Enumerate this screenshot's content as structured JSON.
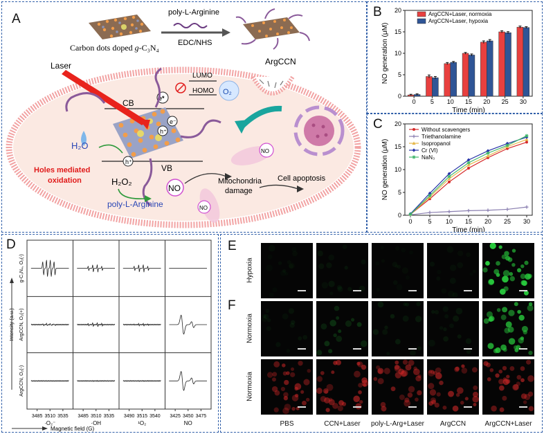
{
  "panel_labels": {
    "a": "A",
    "b": "B",
    "c": "C",
    "d": "D",
    "e": "E",
    "f": "F"
  },
  "panelA": {
    "carbon_dots_label_prefix": "Carbon dots doped ",
    "carbon_dots_label_g": "g",
    "carbon_dots_label_suffix": "-C₃N₄",
    "reagent_top": "poly-L-Arginine",
    "reagent_bottom": "EDC/NHS",
    "product_label": "ArgCCN",
    "laser_label": "Laser",
    "lumo": "LUMO",
    "homo": "HOMO",
    "o2": "O₂",
    "cb": "CB",
    "vb": "VB",
    "e_star": "e*",
    "e_minus": "e⁻",
    "h_plus": "h⁺",
    "h2o": "H₂O",
    "h2o2": "H₂O₂",
    "holes_line1": "Holes mediated",
    "holes_line2": "oxidation",
    "no_label": "NO",
    "poly_arg": "poly-L-Arginine",
    "mito_line1": "Mitochondria",
    "mito_line2": "damage",
    "apoptosis": "Cell apoptosis",
    "colors": {
      "membrane": "#f2a3a3",
      "cytoplasm": "#fbe9e2",
      "laser": "#e8231c",
      "holes": "#e01b1b",
      "poly": "#2a46b5",
      "arrow": "#1aa59e"
    }
  },
  "chart_data": [
    {
      "id": "B",
      "type": "bar",
      "categories": [
        "0",
        "5",
        "10",
        "15",
        "20",
        "25",
        "30"
      ],
      "series": [
        {
          "name": "ArgCCN+Laser, normoxia",
          "color": "#e8403f",
          "values": [
            0.3,
            4.6,
            7.6,
            10.0,
            12.6,
            15.0,
            16.1
          ],
          "errors": [
            0.15,
            0.35,
            0.25,
            0.2,
            0.3,
            0.25,
            0.25
          ]
        },
        {
          "name": "ArgCCN+Laser, hypoxia",
          "color": "#2f5596",
          "values": [
            0.4,
            4.3,
            7.9,
            9.6,
            12.9,
            14.8,
            16.0
          ],
          "errors": [
            0.15,
            0.3,
            0.2,
            0.25,
            0.3,
            0.25,
            0.2
          ]
        }
      ],
      "xlabel": "Time (min)",
      "ylabel": "NO generation (μM)",
      "ylim": [
        0,
        20
      ],
      "yticks": [
        "0",
        "5",
        "10",
        "15",
        "20"
      ],
      "legend": "top-left"
    },
    {
      "id": "C",
      "type": "line",
      "x": [
        0,
        5,
        10,
        15,
        20,
        25,
        30
      ],
      "xticks": [
        "0",
        "5",
        "10",
        "15",
        "20",
        "25",
        "30"
      ],
      "series": [
        {
          "name": "Without scavengers",
          "color": "#d62a2a",
          "marker": "circle",
          "values": [
            0.2,
            3.6,
            7.3,
            10.3,
            12.6,
            14.6,
            16.0
          ]
        },
        {
          "name": "Triethanolamine",
          "color": "#8a7fb0",
          "marker": "plus",
          "values": [
            0.1,
            0.6,
            0.8,
            1.0,
            1.1,
            1.3,
            1.8
          ]
        },
        {
          "name": "Isopropanol",
          "color": "#e6b84a",
          "marker": "triangle",
          "values": [
            0.2,
            4.0,
            8.0,
            11.0,
            13.0,
            15.0,
            16.6
          ]
        },
        {
          "name": "Cr (VI)",
          "color": "#2734a8",
          "marker": "diamond",
          "values": [
            0.3,
            4.8,
            9.1,
            12.1,
            14.1,
            15.7,
            17.1
          ]
        },
        {
          "name": "NaN₃",
          "color": "#3fb56a",
          "marker": "star",
          "values": [
            0.2,
            4.3,
            8.5,
            11.5,
            13.6,
            15.3,
            17.4
          ]
        }
      ],
      "xlabel": "Time (min)",
      "ylabel": "NO generation (μM)",
      "ylim": [
        0,
        20
      ],
      "yticks": [
        "0",
        "5",
        "10",
        "15",
        "20"
      ],
      "legend": "top-left"
    }
  ],
  "panelD": {
    "ylabel": "Intensity (a.u.)",
    "xlabel": "Magnetic field (G)",
    "row_labels": [
      "g-C₃N₄, O₂(-)",
      "ArgCCN, O₂(+)",
      "ArgCCN, O₂(-)"
    ],
    "columns": [
      {
        "ticks": [
          "3485",
          "3510",
          "3535"
        ],
        "species": "·O₂⁻"
      },
      {
        "ticks": [
          "3485",
          "3510",
          "3535"
        ],
        "species": "·OH"
      },
      {
        "ticks": [
          "3490",
          "3515",
          "3540"
        ],
        "species": "¹O₂"
      },
      {
        "ticks": [
          "3425",
          "3450",
          "3475"
        ],
        "species": "NO"
      }
    ]
  },
  "panelEF": {
    "columns": [
      "PBS",
      "CCN+Laser",
      "poly-L-Arg+Laser",
      "ArgCCN",
      "ArgCCN+Laser"
    ],
    "rows": [
      {
        "label": "Hypoxia",
        "color": "green",
        "intensity": [
          0.05,
          0.08,
          0.05,
          0.06,
          1.0
        ]
      },
      {
        "label": "Normoxia",
        "color": "green",
        "intensity": [
          0.08,
          0.25,
          0.12,
          0.1,
          0.85
        ]
      },
      {
        "label": "Normoxia",
        "color": "red",
        "intensity": [
          0.55,
          0.6,
          0.55,
          0.6,
          0.6
        ]
      }
    ]
  }
}
